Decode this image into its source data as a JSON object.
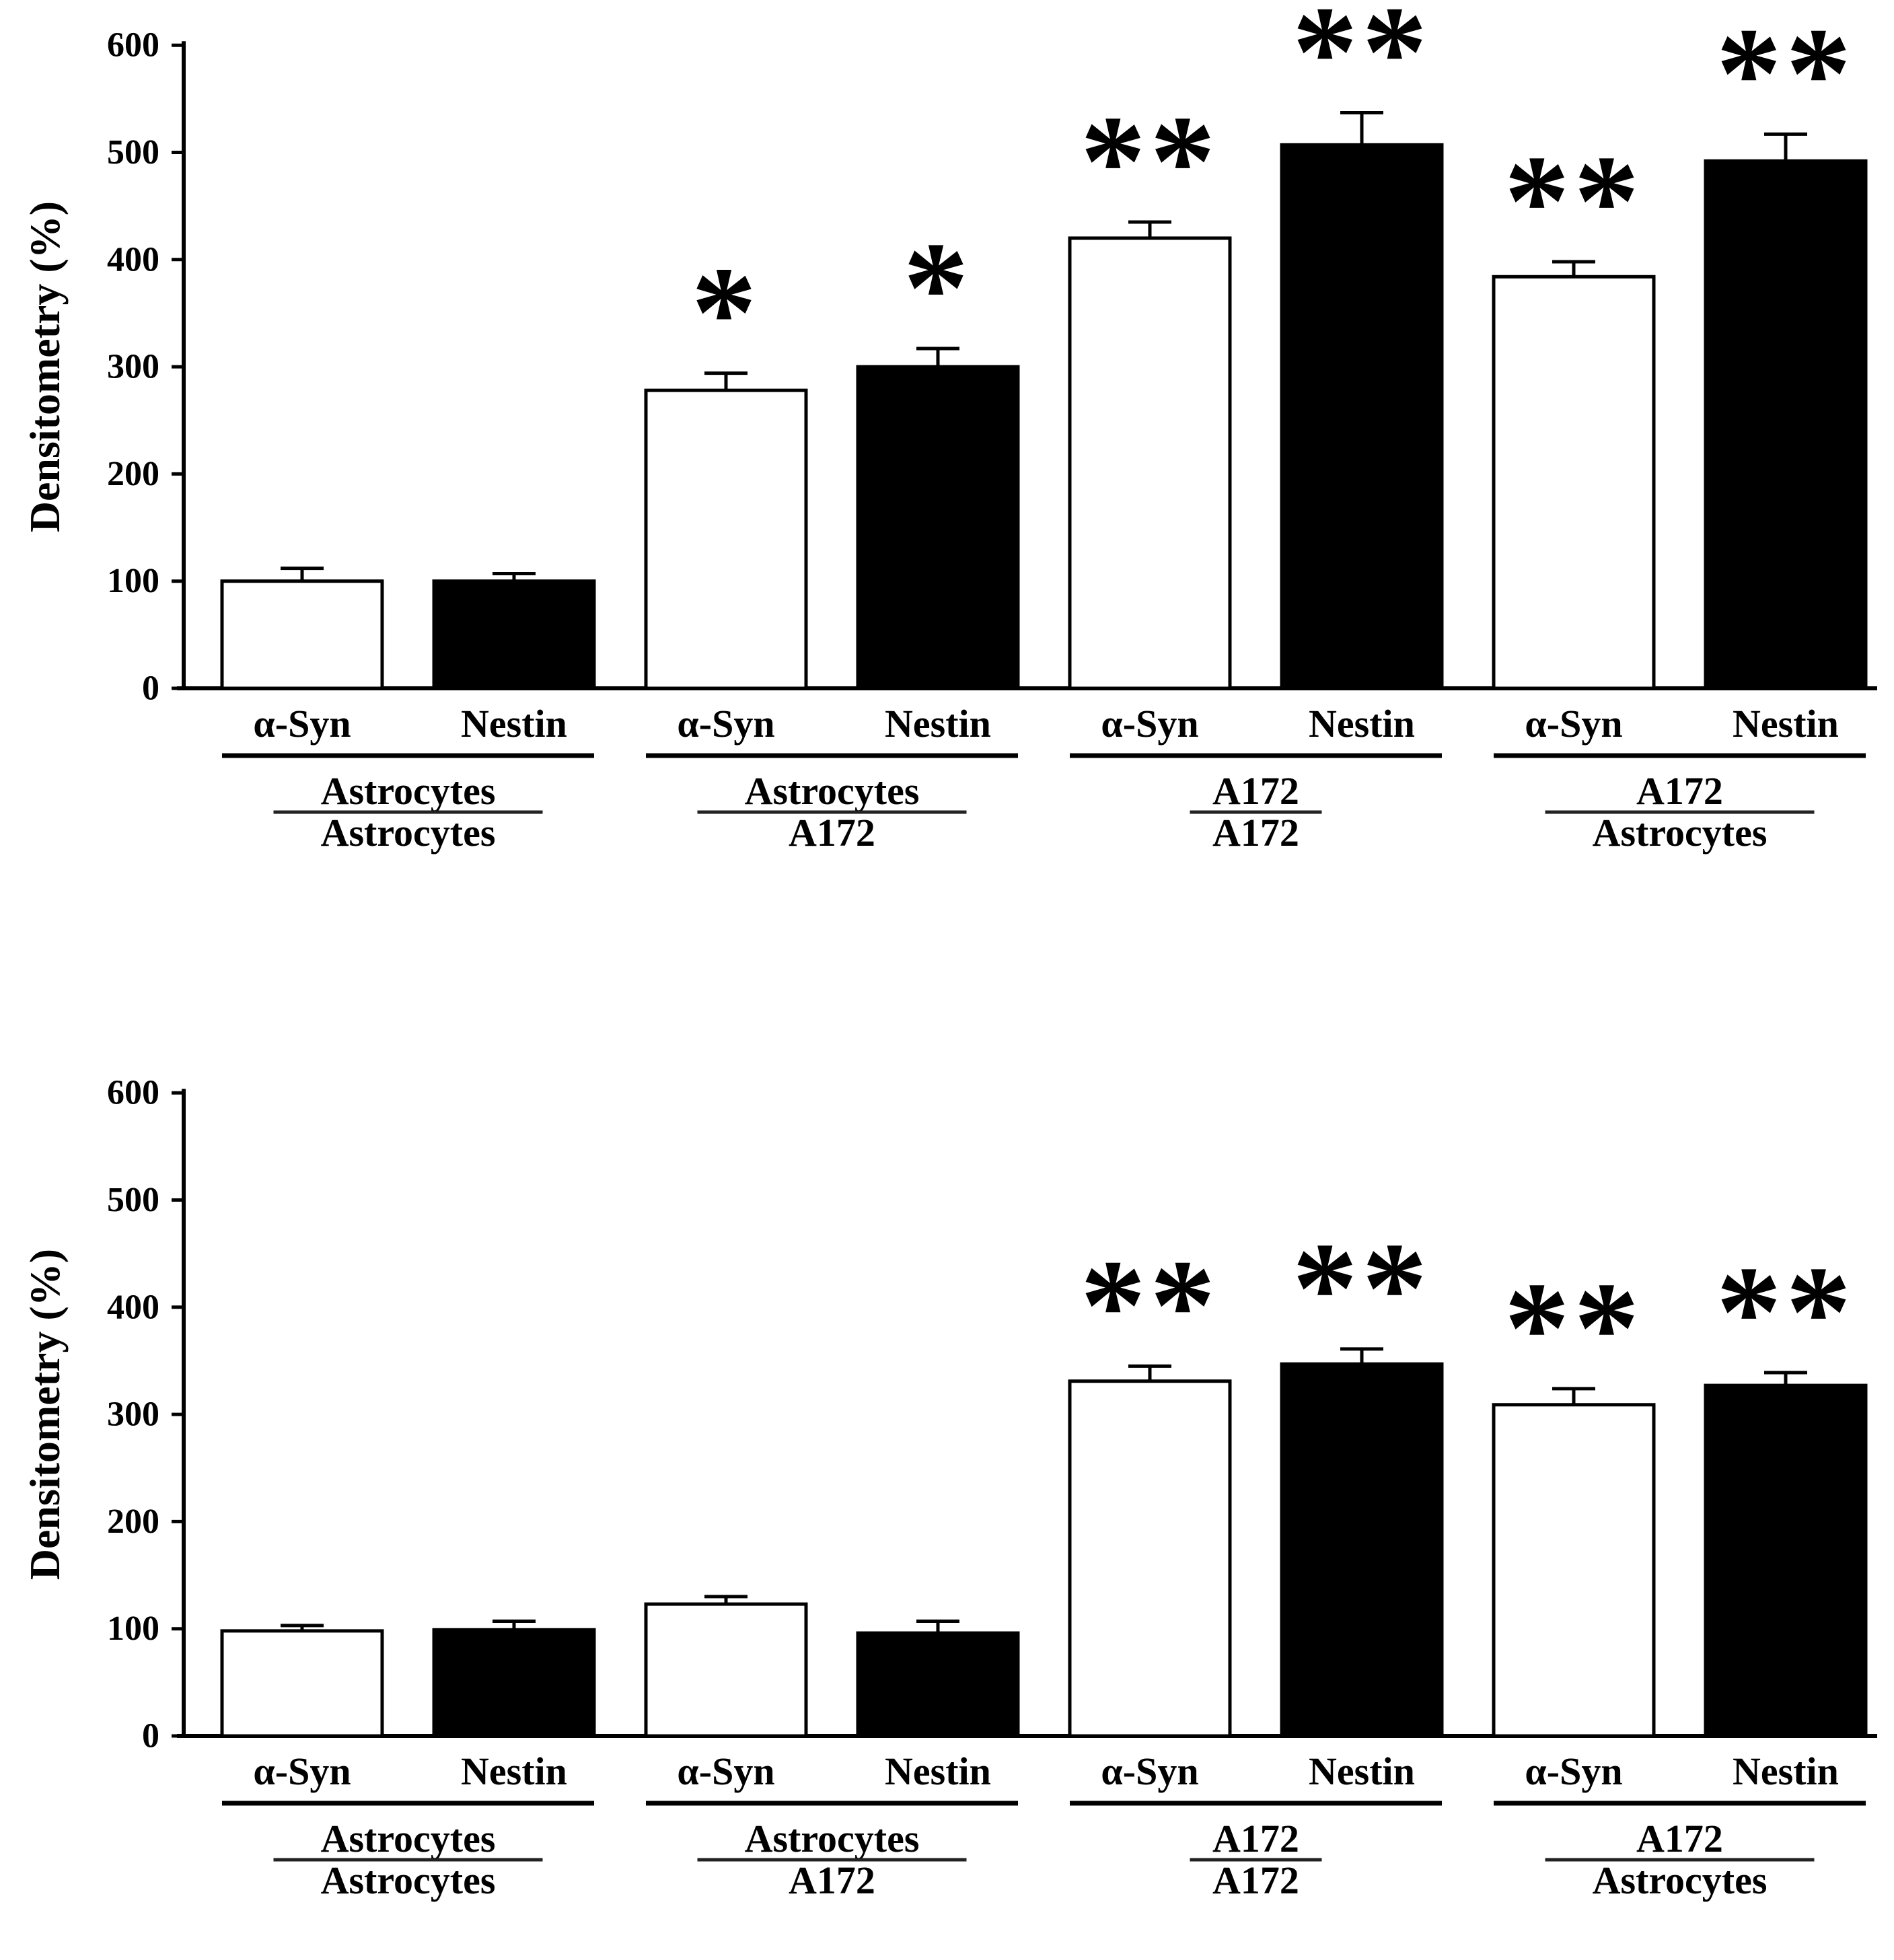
{
  "figure": {
    "background": "#ffffff",
    "ink_color": "#000000",
    "bar_fill_open": "#ffffff",
    "bar_fill_filled": "#000000"
  },
  "chart_data": [
    {
      "type": "bar",
      "title": "",
      "xlabel": "",
      "ylabel": "Densitometry (%)",
      "ylim": [
        0,
        600
      ],
      "yticks": [
        0,
        100,
        200,
        300,
        400,
        500,
        600
      ],
      "grid": false,
      "legend": "none",
      "series_styles": [
        {
          "name": "α-Syn",
          "fill": "#ffffff",
          "stroke": "#000000"
        },
        {
          "name": "Nestin",
          "fill": "#000000",
          "stroke": "#000000"
        }
      ],
      "groups": [
        {
          "label_top": "Astrocytes",
          "label_bottom": "Astrocytes",
          "bars": [
            {
              "series": "α-Syn",
              "value": 100,
              "error": 12,
              "sig": ""
            },
            {
              "series": "Nestin",
              "value": 100,
              "error": 7,
              "sig": ""
            }
          ]
        },
        {
          "label_top": "Astrocytes",
          "label_bottom": "A172",
          "bars": [
            {
              "series": "α-Syn",
              "value": 278,
              "error": 16,
              "sig": "*"
            },
            {
              "series": "Nestin",
              "value": 300,
              "error": 17,
              "sig": "*"
            }
          ]
        },
        {
          "label_top": "A172",
          "label_bottom": "A172",
          "bars": [
            {
              "series": "α-Syn",
              "value": 420,
              "error": 15,
              "sig": "**"
            },
            {
              "series": "Nestin",
              "value": 507,
              "error": 30,
              "sig": "**"
            }
          ]
        },
        {
          "label_top": "A172",
          "label_bottom": "Astrocytes",
          "bars": [
            {
              "series": "α-Syn",
              "value": 384,
              "error": 14,
              "sig": "**"
            },
            {
              "series": "Nestin",
              "value": 492,
              "error": 25,
              "sig": "**"
            }
          ]
        }
      ]
    },
    {
      "type": "bar",
      "title": "",
      "xlabel": "",
      "ylabel": "Densitometry (%)",
      "ylim": [
        0,
        600
      ],
      "yticks": [
        0,
        100,
        200,
        300,
        400,
        500,
        600
      ],
      "grid": false,
      "legend": "none",
      "series_styles": [
        {
          "name": "α-Syn",
          "fill": "#ffffff",
          "stroke": "#000000"
        },
        {
          "name": "Nestin",
          "fill": "#000000",
          "stroke": "#000000"
        }
      ],
      "groups": [
        {
          "label_top": "Astrocytes",
          "label_bottom": "Astrocytes",
          "bars": [
            {
              "series": "α-Syn",
              "value": 98,
              "error": 5,
              "sig": ""
            },
            {
              "series": "Nestin",
              "value": 99,
              "error": 8,
              "sig": ""
            }
          ]
        },
        {
          "label_top": "Astrocytes",
          "label_bottom": "A172",
          "bars": [
            {
              "series": "α-Syn",
              "value": 123,
              "error": 7,
              "sig": ""
            },
            {
              "series": "Nestin",
              "value": 96,
              "error": 11,
              "sig": ""
            }
          ]
        },
        {
          "label_top": "A172",
          "label_bottom": "A172",
          "bars": [
            {
              "series": "α-Syn",
              "value": 331,
              "error": 14,
              "sig": "**"
            },
            {
              "series": "Nestin",
              "value": 347,
              "error": 14,
              "sig": "**"
            }
          ]
        },
        {
          "label_top": "A172",
          "label_bottom": "Astrocytes",
          "bars": [
            {
              "series": "α-Syn",
              "value": 309,
              "error": 15,
              "sig": "**"
            },
            {
              "series": "Nestin",
              "value": 327,
              "error": 12,
              "sig": "**"
            }
          ]
        }
      ]
    }
  ]
}
